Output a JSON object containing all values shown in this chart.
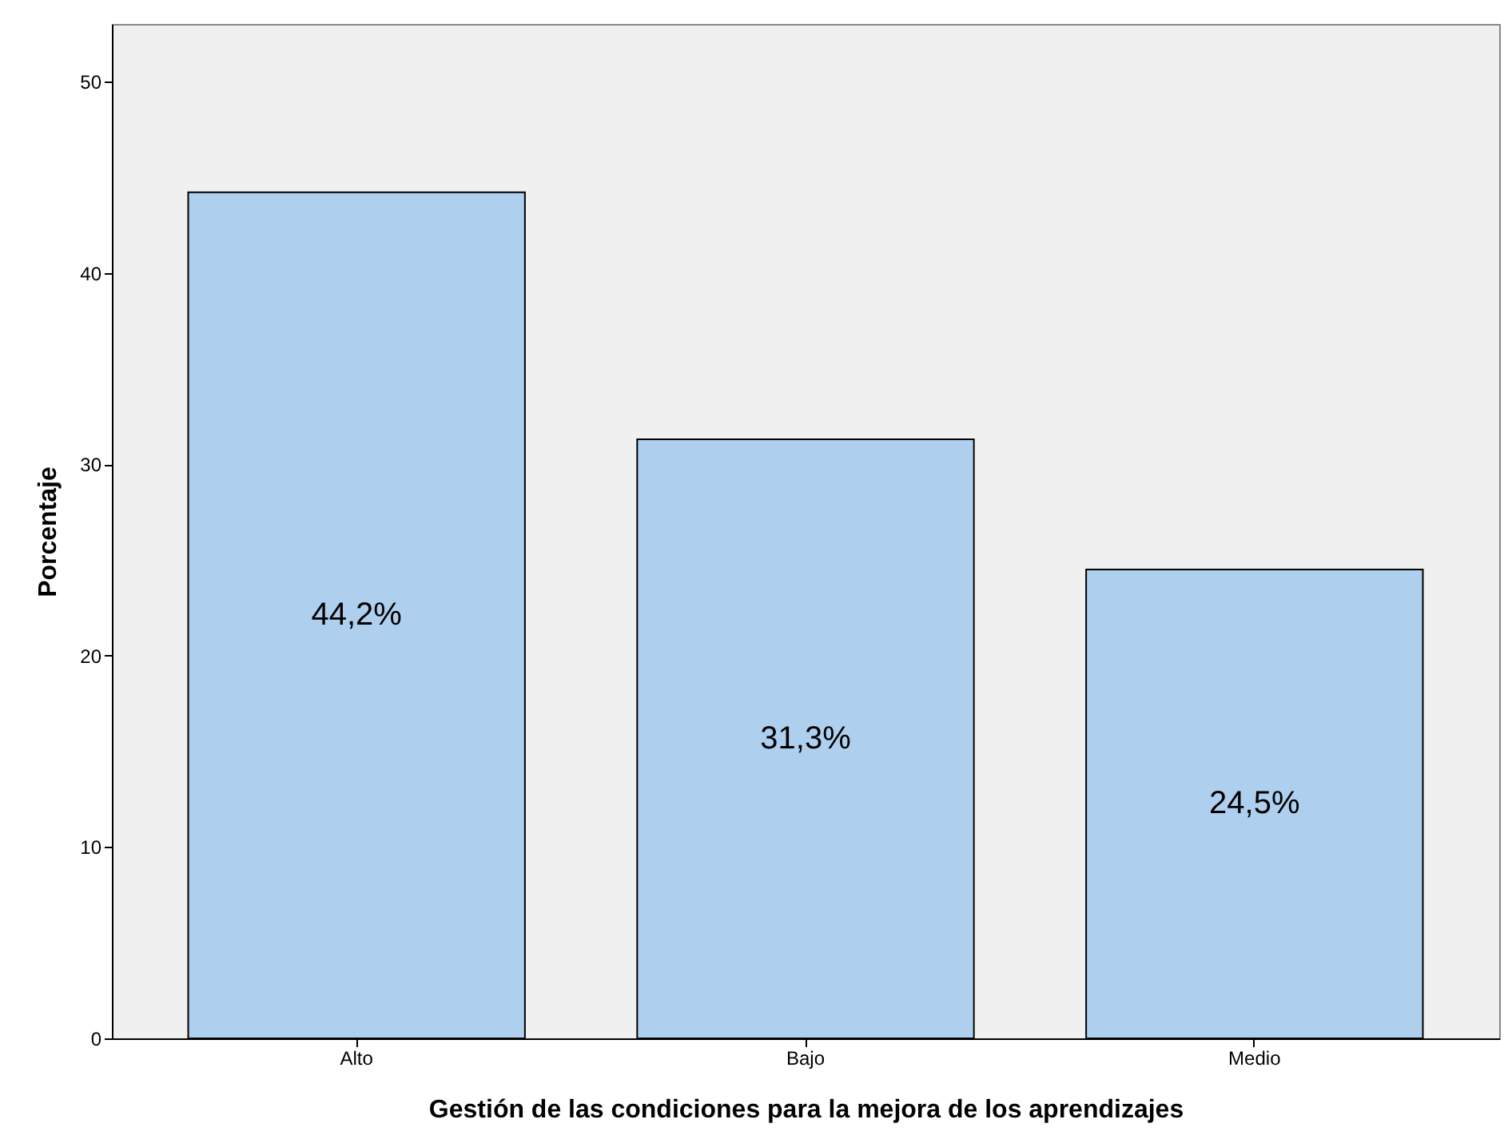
{
  "chart_data": {
    "type": "bar",
    "xlabel": "Gestión de las condiciones para la mejora de los aprendizajes",
    "ylabel": "Porcentaje",
    "categories": [
      "Alto",
      "Bajo",
      "Medio"
    ],
    "values": [
      44.2,
      31.3,
      24.5
    ],
    "value_labels": [
      "44,2%",
      "31,3%",
      "24,5%"
    ],
    "color": "#aecfee",
    "ylim": [
      0,
      53
    ],
    "yticks": [
      0,
      10,
      20,
      30,
      40,
      50
    ]
  }
}
